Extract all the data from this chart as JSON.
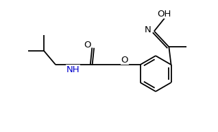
{
  "bg_color": "#ffffff",
  "line_color": "#000000",
  "nh_color": "#0000cd",
  "atom_color": "#000000",
  "fig_width": 3.18,
  "fig_height": 1.92,
  "dpi": 100,
  "xlim": [
    0,
    10
  ],
  "ylim": [
    0,
    6
  ],
  "bond_lw": 1.3,
  "label_fs": 9.5
}
